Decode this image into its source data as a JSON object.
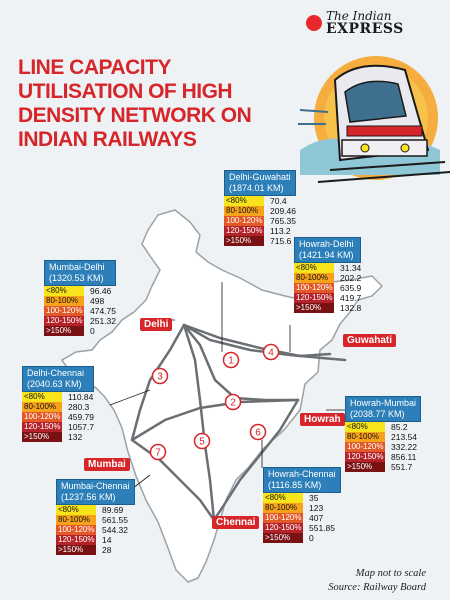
{
  "brand": {
    "line1": "The Indian",
    "line2": "EXPRESS"
  },
  "title": {
    "lines": [
      "LINE CAPACITY",
      "UTILISATION OF HIGH",
      "DENSITY NETWORK ON",
      "INDIAN RAILWAYS"
    ]
  },
  "bands": [
    "<80%",
    "80-100%",
    "100-120%",
    "120-150%",
    ">150%"
  ],
  "routes": {
    "delhi_guwahati": {
      "name": "Delhi-Guwahati",
      "km": "(1874.01 KM)",
      "values": [
        "70.4",
        "209.46",
        "765.35",
        "113.2",
        "715.6"
      ]
    },
    "howrah_delhi": {
      "name": "Howrah-Delhi",
      "km": "(1421.94 KM)",
      "values": [
        "31.34",
        "202.2",
        "635.9",
        "419.7",
        "132.8"
      ]
    },
    "mumbai_delhi": {
      "name": "Mumbai-Delhi",
      "km": "(1320.53 KM)",
      "values": [
        "96.46",
        "498",
        "474.75",
        "251.32",
        "0"
      ]
    },
    "delhi_chennai": {
      "name": "Delhi-Chennai",
      "km": "(2040.63 KM)",
      "values": [
        "110.84",
        "280.3",
        "459.79",
        "1057.7",
        "132"
      ]
    },
    "howrah_mumbai": {
      "name": "Howrah-Mumbai",
      "km": "(2038.77 KM)",
      "values": [
        "85.2",
        "213.54",
        "332.22",
        "856.11",
        "551.7"
      ]
    },
    "howrah_chennai": {
      "name": "Howrah-Chennai",
      "km": "(1116.85 KM)",
      "values": [
        "35",
        "123",
        "407",
        "551.85",
        "0"
      ]
    },
    "mumbai_chennai": {
      "name": "Mumbai-Chennai",
      "km": "(1237.56 KM)",
      "values": [
        "89.69",
        "561.55",
        "544.32",
        "14",
        "28"
      ]
    }
  },
  "cities": {
    "delhi": "Delhi",
    "guwahati": "Guwahati",
    "howrah": "Howrah",
    "mumbai": "Mumbai",
    "chennai": "Chennai"
  },
  "route_numbers": [
    "1",
    "2",
    "3",
    "4",
    "5",
    "6",
    "7"
  ],
  "band_colors": [
    "#f7e41b",
    "#f6a21a",
    "#e35827",
    "#b5232a",
    "#7a1214"
  ],
  "accent_color": "#d6262a",
  "header_color": "#2c7fb8",
  "footer": {
    "note": "Map not to scale",
    "source": "Source: Railway Board"
  }
}
